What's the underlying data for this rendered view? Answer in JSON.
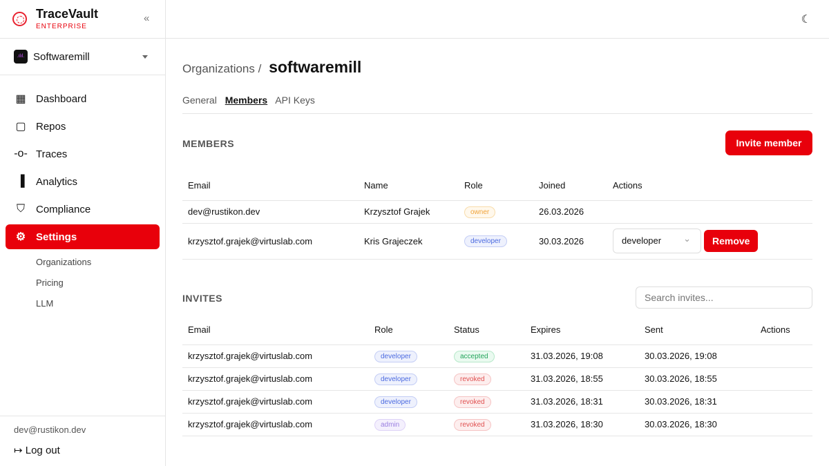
{
  "brand": {
    "name": "TraceVault",
    "edition": "ENTERPRISE"
  },
  "org": {
    "name": "Softwaremill",
    "logo_text": ".ılıl."
  },
  "nav": [
    {
      "label": "Dashboard",
      "icon": "dashboard-icon",
      "glyph": "▦"
    },
    {
      "label": "Repos",
      "icon": "repos-icon",
      "glyph": "▢"
    },
    {
      "label": "Traces",
      "icon": "traces-icon",
      "glyph": "-o-"
    },
    {
      "label": "Analytics",
      "icon": "analytics-icon",
      "glyph": "▐"
    },
    {
      "label": "Compliance",
      "icon": "shield-icon",
      "glyph": "⛉"
    },
    {
      "label": "Settings",
      "icon": "gear-icon",
      "glyph": "⚙",
      "active": true
    }
  ],
  "subnav": [
    "Organizations",
    "Pricing",
    "LLM"
  ],
  "user": {
    "email": "dev@rustikon.dev",
    "logout": "Log out"
  },
  "breadcrumb": {
    "parent": "Organizations",
    "sep": "/",
    "current": "softwaremill"
  },
  "tabs": [
    "General",
    "Members",
    "API Keys"
  ],
  "members": {
    "title": "MEMBERS",
    "invite": "Invite member",
    "columns": [
      "Email",
      "Name",
      "Role",
      "Joined",
      "Actions"
    ],
    "rows": [
      {
        "email": "dev@rustikon.dev",
        "name": "Krzysztof Grajek",
        "role": "owner",
        "joined": "26.03.2026"
      },
      {
        "email": "krzysztof.grajek@virtuslab.com",
        "name": "Kris Grajeczek",
        "role": "developer",
        "joined": "30.03.2026",
        "select": "developer",
        "remove": "Remove"
      }
    ]
  },
  "invites": {
    "title": "INVITES",
    "search_placeholder": "Search invites...",
    "columns": [
      "Email",
      "Role",
      "Status",
      "Expires",
      "Sent",
      "Actions"
    ],
    "rows": [
      {
        "email": "krzysztof.grajek@virtuslab.com",
        "role": "developer",
        "status": "accepted",
        "expires": "31.03.2026, 19:08",
        "sent": "30.03.2026, 19:08"
      },
      {
        "email": "krzysztof.grajek@virtuslab.com",
        "role": "developer",
        "status": "revoked",
        "expires": "31.03.2026, 18:55",
        "sent": "30.03.2026, 18:55"
      },
      {
        "email": "krzysztof.grajek@virtuslab.com",
        "role": "developer",
        "status": "revoked",
        "expires": "31.03.2026, 18:31",
        "sent": "30.03.2026, 18:31"
      },
      {
        "email": "krzysztof.grajek@virtuslab.com",
        "role": "admin",
        "status": "revoked",
        "expires": "31.03.2026, 18:30",
        "sent": "30.03.2026, 18:30"
      }
    ]
  },
  "colors": {
    "accent": "#e8000b"
  }
}
